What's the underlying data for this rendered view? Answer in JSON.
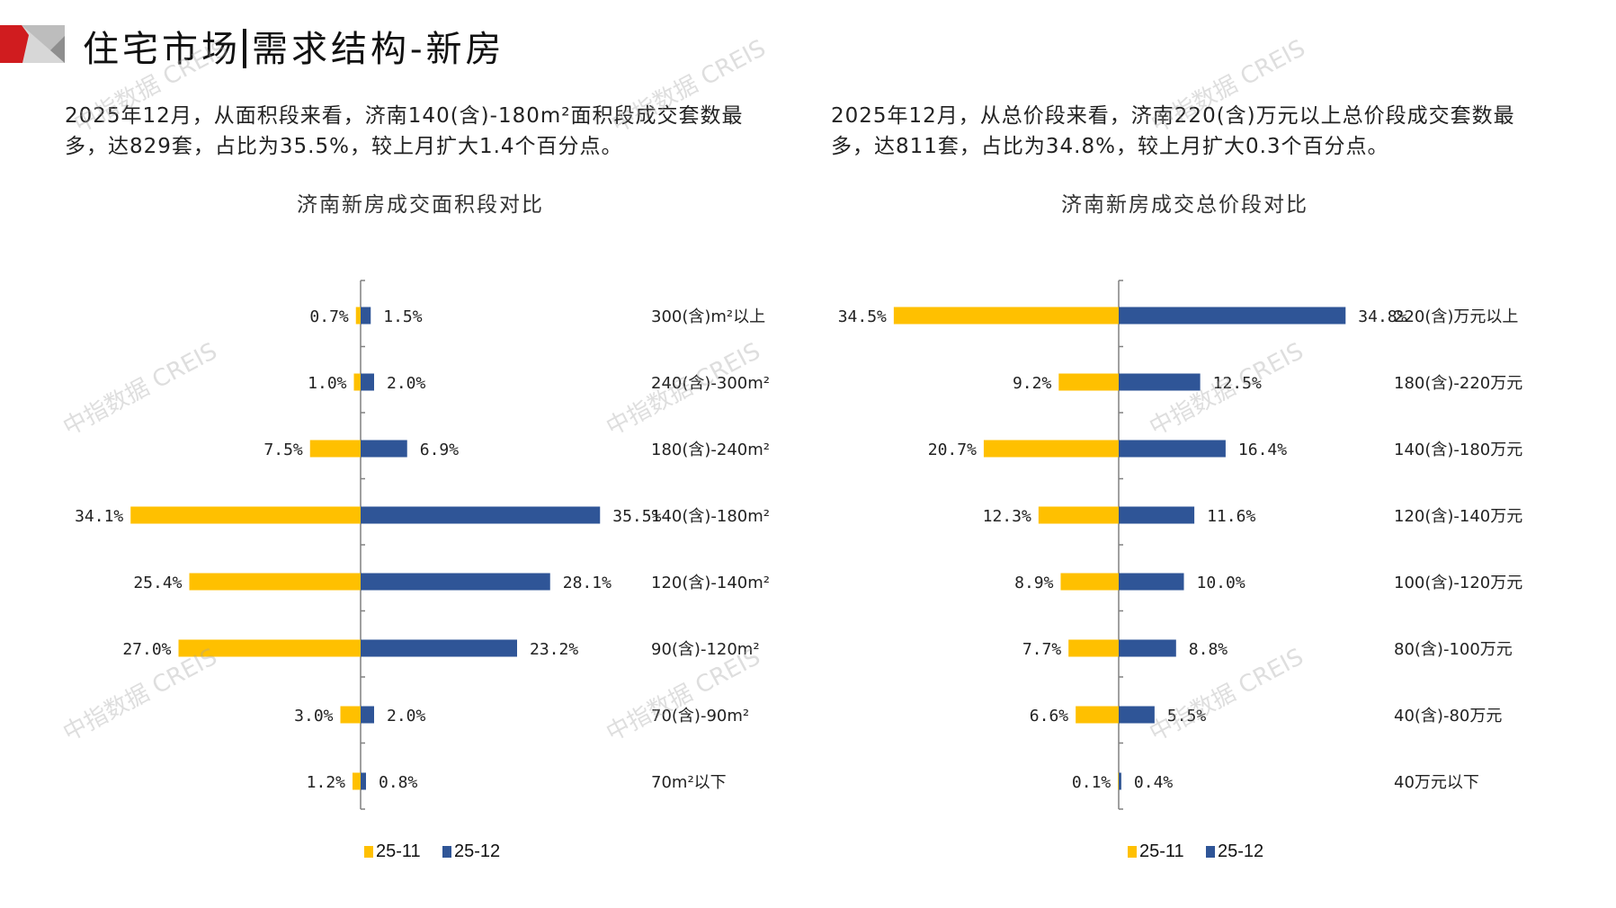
{
  "header": {
    "title_part1": "住宅市场",
    "title_part2": "需求结构-新房",
    "logo_colors": {
      "red": "#d01c1f",
      "light_gray": "#d7d7d7",
      "mid_gray": "#bdbdbd",
      "dark_gray": "#8e8e8e"
    }
  },
  "summaries": {
    "left": "2025年12月，从面积段来看，济南140(含)-180m²面积段成交套数最多，达829套，占比为35.5%，较上月扩大1.4个百分点。",
    "right": "2025年12月，从总价段来看，济南220(含)万元以上总价段成交套数最多，达811套，占比为34.8%，较上月扩大0.3个百分点。"
  },
  "watermark": "中指数据 CREIS",
  "colors": {
    "series_prev": "#ffc000",
    "series_curr": "#2f5597",
    "axis": "#808080"
  },
  "chart_data": [
    {
      "type": "bar",
      "orientation": "horizontal-butterfly",
      "title": "济南新房成交面积段对比",
      "xlabel": "",
      "ylabel": "",
      "unit": "%",
      "categories": [
        "300(含)m²以上",
        "240(含)-300m²",
        "180(含)-240m²",
        "140(含)-180m²",
        "120(含)-140m²",
        "90(含)-120m²",
        "70(含)-90m²",
        "70m²以下"
      ],
      "series": [
        {
          "name": "25-11",
          "direction": "left",
          "values": [
            0.7,
            1.0,
            7.5,
            34.1,
            25.4,
            27.0,
            3.0,
            1.2
          ],
          "labels": [
            "0.7%",
            "1.0%",
            "7.5%",
            "34.1%",
            "25.4%",
            "27.0%",
            "3.0%",
            "1.2%"
          ]
        },
        {
          "name": "25-12",
          "direction": "right",
          "values": [
            1.5,
            2.0,
            6.9,
            35.5,
            28.1,
            23.2,
            2.0,
            0.8
          ],
          "labels": [
            "1.5%",
            "2.0%",
            "6.9%",
            "35.5%",
            "28.1%",
            "23.2%",
            "2.0%",
            "0.8%"
          ]
        }
      ],
      "legend": [
        "25-11",
        "25-12"
      ],
      "legend_position": "bottom",
      "grid": false
    },
    {
      "type": "bar",
      "orientation": "horizontal-butterfly",
      "title": "济南新房成交总价段对比",
      "xlabel": "",
      "ylabel": "",
      "unit": "%",
      "categories": [
        "220(含)万元以上",
        "180(含)-220万元",
        "140(含)-180万元",
        "120(含)-140万元",
        "100(含)-120万元",
        "80(含)-100万元",
        "40(含)-80万元",
        "40万元以下"
      ],
      "series": [
        {
          "name": "25-11",
          "direction": "left",
          "values": [
            34.5,
            9.2,
            20.7,
            12.3,
            8.9,
            7.7,
            6.6,
            0.1
          ],
          "labels": [
            "34.5%",
            "9.2%",
            "20.7%",
            "12.3%",
            "8.9%",
            "7.7%",
            "6.6%",
            "0.1%"
          ]
        },
        {
          "name": "25-12",
          "direction": "right",
          "values": [
            34.8,
            12.5,
            16.4,
            11.6,
            10.0,
            8.8,
            5.5,
            0.4
          ],
          "labels": [
            "34.8%",
            "12.5%",
            "16.4%",
            "11.6%",
            "10.0%",
            "8.8%",
            "5.5%",
            "0.4%"
          ]
        }
      ],
      "legend": [
        "25-11",
        "25-12"
      ],
      "legend_position": "bottom",
      "grid": false
    }
  ]
}
